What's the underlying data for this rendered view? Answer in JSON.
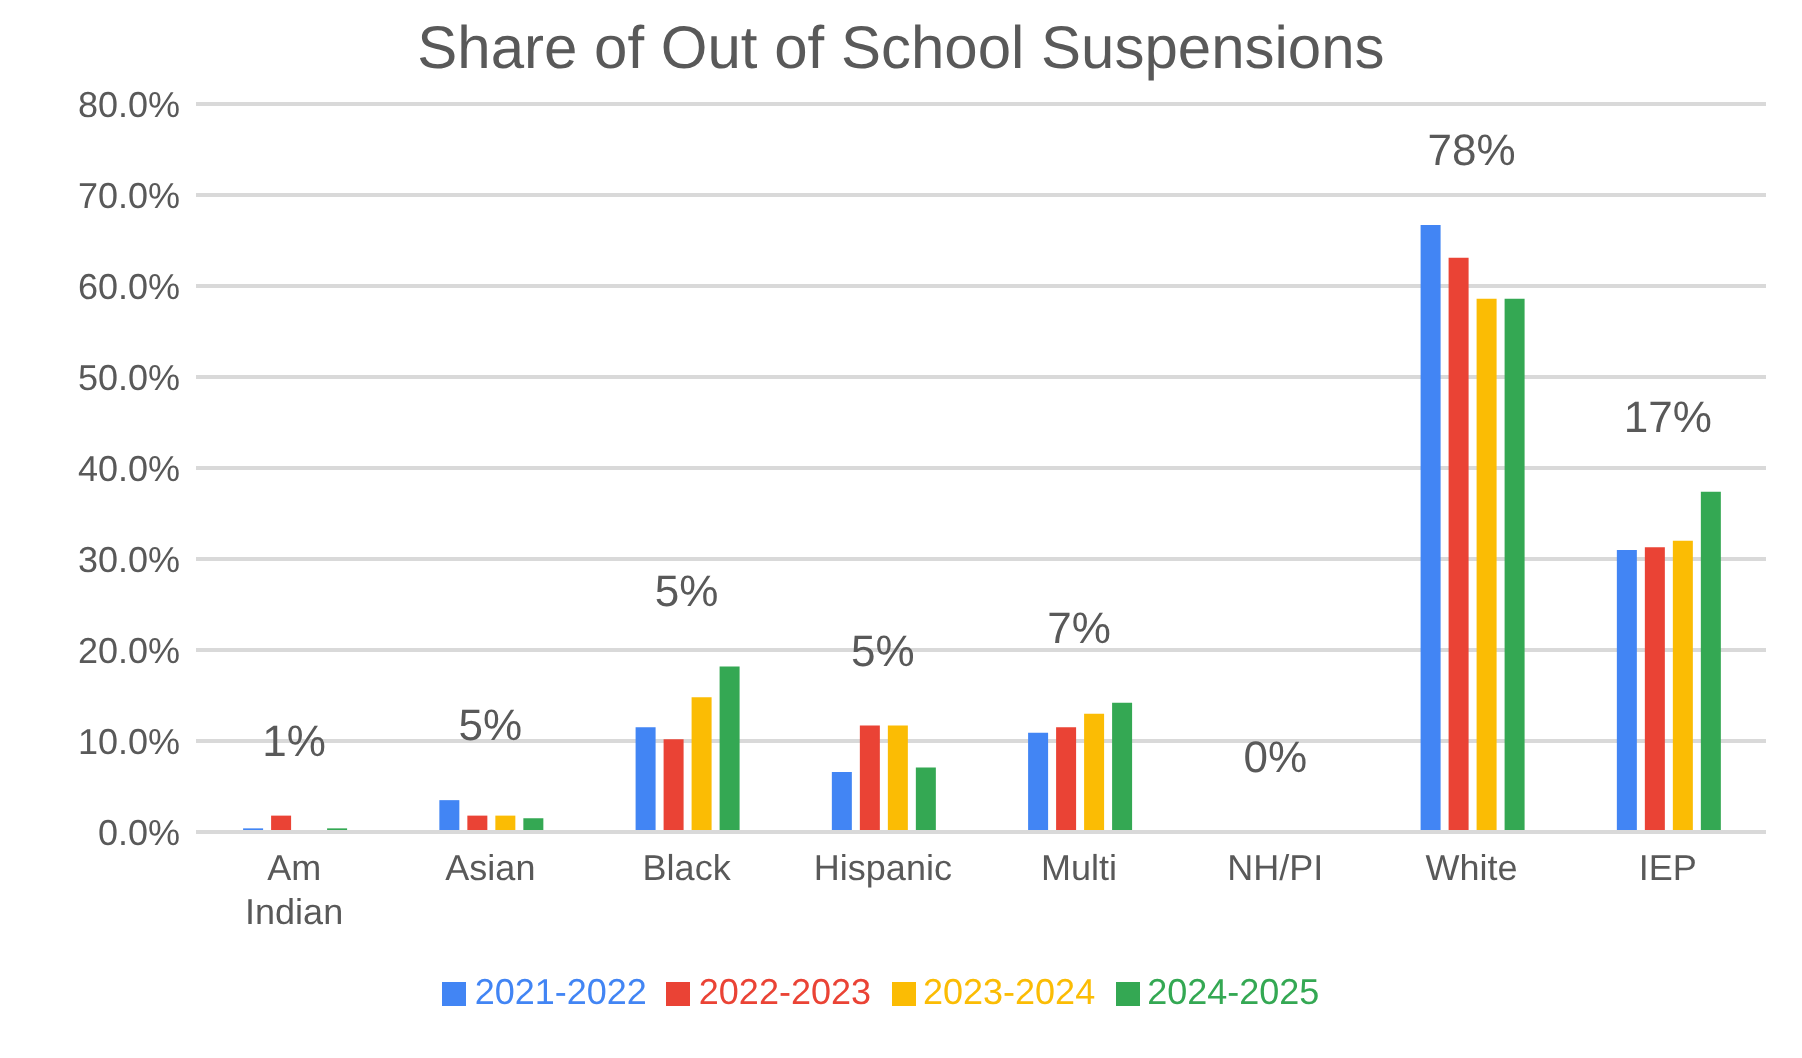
{
  "chart_data": {
    "type": "bar",
    "title": "Share of Out of School Suspensions",
    "categories": [
      "Am Indian",
      "Asian",
      "Black",
      "Hispanic",
      "Multi",
      "NH/PI",
      "White",
      "IEP"
    ],
    "series": [
      {
        "name": "2021-2022",
        "color": "#4285f4",
        "values": [
          0.4,
          3.5,
          11.5,
          6.6,
          10.9,
          0,
          66.7,
          31.0
        ]
      },
      {
        "name": "2022-2023",
        "color": "#ea4335",
        "values": [
          1.8,
          1.8,
          10.2,
          11.7,
          11.5,
          0,
          63.1,
          31.3
        ]
      },
      {
        "name": "2023-2024",
        "color": "#fbbc04",
        "values": [
          0,
          1.8,
          14.8,
          11.7,
          13.0,
          0,
          58.6,
          32.0
        ]
      },
      {
        "name": "2024-2025",
        "color": "#34a853",
        "values": [
          0.4,
          1.5,
          18.2,
          7.1,
          14.2,
          0,
          58.6,
          37.4
        ]
      }
    ],
    "ylim": [
      0,
      80
    ],
    "yticks": [
      {
        "value": 0,
        "label": "0.0%"
      },
      {
        "value": 10,
        "label": "10.0%"
      },
      {
        "value": 20,
        "label": "20.0%"
      },
      {
        "value": 30,
        "label": "30.0%"
      },
      {
        "value": 40,
        "label": "40.0%"
      },
      {
        "value": 50,
        "label": "50.0%"
      },
      {
        "value": 60,
        "label": "60.0%"
      },
      {
        "value": 70,
        "label": "70.0%"
      },
      {
        "value": 80,
        "label": "80.0%"
      }
    ],
    "grid": "y",
    "legend": "bottom",
    "annotations": [
      "1%",
      "5%",
      "5%",
      "5%",
      "7%",
      "0%",
      "78%",
      "17%"
    ]
  }
}
